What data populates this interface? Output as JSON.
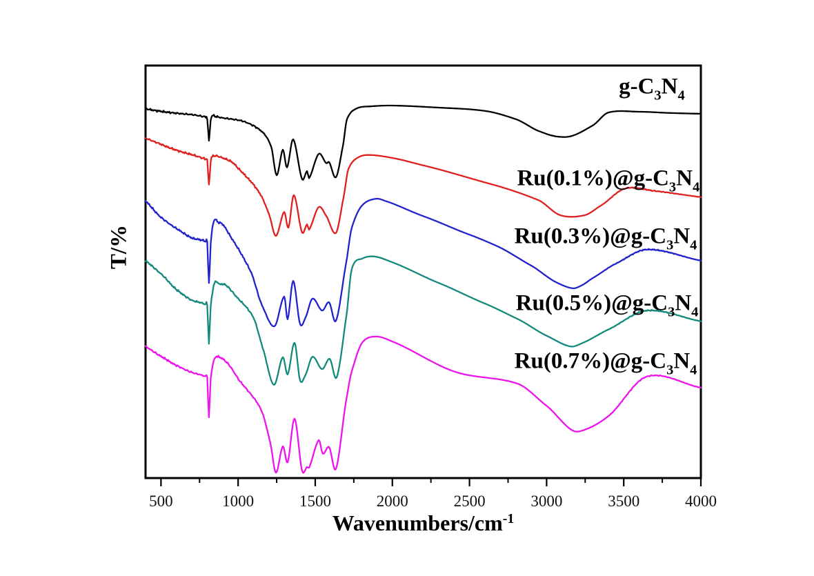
{
  "figure": {
    "background": "#ffffff",
    "frame_color": "#000000"
  },
  "chart_data": {
    "type": "line",
    "title": "",
    "xlabel": "Wavenumbers/cm⁻¹",
    "ylabel": "T/%",
    "grid": false,
    "legend_position": "inline labels placed above each curve near 3000-3700 cm⁻¹",
    "x_axis": {
      "min": 400,
      "max": 4000,
      "major_ticks": [
        500,
        1000,
        1500,
        2000,
        2500,
        3000,
        3500,
        4000
      ],
      "minor_ticks": [
        750,
        1250,
        1750,
        2250,
        2750,
        3250,
        3750
      ],
      "tick_direction": "outside"
    },
    "y_axis": {
      "min": 0,
      "max": 100,
      "ticks": [],
      "note": "transmittance with arbitrary vertical offsets; no numeric scale shown"
    },
    "series": [
      {
        "id": "g-c3n4",
        "label": "g-C₃N₄",
        "color": "#000000",
        "label_anchor": [
          3682,
          94.8
        ],
        "points": [
          [
            400,
            89.5
          ],
          [
            480,
            89.0
          ],
          [
            560,
            88.6
          ],
          [
            640,
            88.3
          ],
          [
            700,
            88.1
          ],
          [
            750,
            87.8
          ],
          [
            790,
            87.5
          ],
          [
            800,
            87.2
          ],
          [
            811,
            81.7
          ],
          [
            822,
            86.9
          ],
          [
            832,
            87.8
          ],
          [
            860,
            87.6
          ],
          [
            900,
            87.3
          ],
          [
            960,
            87.0
          ],
          [
            1040,
            86.4
          ],
          [
            1151,
            84.1
          ],
          [
            1214,
            80.4
          ],
          [
            1250,
            73.4
          ],
          [
            1290,
            79.6
          ],
          [
            1317,
            75.3
          ],
          [
            1357,
            82.1
          ],
          [
            1415,
            72.4
          ],
          [
            1447,
            74.4
          ],
          [
            1460,
            72.7
          ],
          [
            1523,
            78.6
          ],
          [
            1572,
            76.3
          ],
          [
            1590,
            76.6
          ],
          [
            1634,
            72.9
          ],
          [
            1679,
            80.4
          ],
          [
            1706,
            87.0
          ],
          [
            1769,
            89.6
          ],
          [
            1858,
            90.1
          ],
          [
            2000,
            90.3
          ],
          [
            2300,
            89.8
          ],
          [
            2600,
            89.0
          ],
          [
            2800,
            87.0
          ],
          [
            2950,
            84.1
          ],
          [
            3065,
            82.8
          ],
          [
            3160,
            82.9
          ],
          [
            3300,
            85.5
          ],
          [
            3400,
            88.6
          ],
          [
            3600,
            88.8
          ],
          [
            3800,
            88.5
          ],
          [
            4000,
            88.3
          ]
        ]
      },
      {
        "id": "ru01",
        "label": "Ru(0.1%)@g-C₃N₄",
        "color": "#e02020",
        "label_anchor": [
          3400,
          72.6
        ],
        "points": [
          [
            400,
            82.4
          ],
          [
            480,
            81.2
          ],
          [
            560,
            80.0
          ],
          [
            640,
            79.0
          ],
          [
            700,
            78.4
          ],
          [
            750,
            77.8
          ],
          [
            790,
            77.3
          ],
          [
            800,
            77.1
          ],
          [
            811,
            71.1
          ],
          [
            822,
            76.8
          ],
          [
            832,
            77.9
          ],
          [
            855,
            78.1
          ],
          [
            900,
            77.6
          ],
          [
            960,
            76.6
          ],
          [
            1013,
            74.6
          ],
          [
            1080,
            72.0
          ],
          [
            1147,
            68.6
          ],
          [
            1200,
            64.0
          ],
          [
            1245,
            58.7
          ],
          [
            1299,
            64.5
          ],
          [
            1326,
            60.7
          ],
          [
            1361,
            68.6
          ],
          [
            1415,
            59.5
          ],
          [
            1447,
            61.5
          ],
          [
            1460,
            60.2
          ],
          [
            1523,
            65.7
          ],
          [
            1572,
            63.5
          ],
          [
            1634,
            59.4
          ],
          [
            1683,
            67.9
          ],
          [
            1715,
            74.9
          ],
          [
            1782,
            77.8
          ],
          [
            1858,
            78.3
          ],
          [
            2000,
            77.6
          ],
          [
            2200,
            75.8
          ],
          [
            2645,
            71.2
          ],
          [
            2945,
            67.4
          ],
          [
            3090,
            63.7
          ],
          [
            3245,
            63.7
          ],
          [
            3350,
            66.0
          ],
          [
            3510,
            70.2
          ],
          [
            3700,
            69.6
          ],
          [
            4000,
            68.1
          ]
        ]
      },
      {
        "id": "ru03",
        "label": "Ru(0.3%)@g-C₃N₄",
        "color": "#2222cc",
        "label_anchor": [
          3383,
          58.5
        ],
        "points": [
          [
            400,
            67.2
          ],
          [
            500,
            63.2
          ],
          [
            600,
            60.5
          ],
          [
            700,
            58.2
          ],
          [
            750,
            57.8
          ],
          [
            790,
            57.4
          ],
          [
            800,
            57.1
          ],
          [
            811,
            47.3
          ],
          [
            822,
            56.6
          ],
          [
            843,
            62.4
          ],
          [
            870,
            62.0
          ],
          [
            900,
            61.5
          ],
          [
            960,
            58.0
          ],
          [
            1080,
            50.2
          ],
          [
            1156,
            41.8
          ],
          [
            1236,
            36.8
          ],
          [
            1299,
            44.0
          ],
          [
            1321,
            38.5
          ],
          [
            1357,
            47.8
          ],
          [
            1402,
            37.3
          ],
          [
            1438,
            39.0
          ],
          [
            1482,
            43.5
          ],
          [
            1545,
            40.6
          ],
          [
            1590,
            42.6
          ],
          [
            1634,
            38.1
          ],
          [
            1701,
            52.3
          ],
          [
            1737,
            60.7
          ],
          [
            1804,
            66.1
          ],
          [
            1893,
            67.7
          ],
          [
            1960,
            67.1
          ],
          [
            2200,
            63.5
          ],
          [
            2500,
            59.0
          ],
          [
            2680,
            56.2
          ],
          [
            2900,
            51.5
          ],
          [
            3060,
            47.5
          ],
          [
            3170,
            46.0
          ],
          [
            3227,
            46.7
          ],
          [
            3300,
            48.5
          ],
          [
            3450,
            52.0
          ],
          [
            3650,
            55.4
          ],
          [
            4000,
            52.7
          ]
        ]
      },
      {
        "id": "ru05",
        "label": "Ru(0.5%)@g-C₃N₄",
        "color": "#12897b",
        "label_anchor": [
          3392,
          42.3
        ],
        "points": [
          [
            400,
            52.7
          ],
          [
            500,
            49.5
          ],
          [
            600,
            45.7
          ],
          [
            700,
            43.1
          ],
          [
            750,
            42.6
          ],
          [
            790,
            42.1
          ],
          [
            800,
            41.9
          ],
          [
            811,
            32.8
          ],
          [
            822,
            41.5
          ],
          [
            847,
            47.3
          ],
          [
            880,
            47.0
          ],
          [
            919,
            46.8
          ],
          [
            1000,
            43.5
          ],
          [
            1098,
            39.0
          ],
          [
            1160,
            31.5
          ],
          [
            1232,
            22.6
          ],
          [
            1290,
            29.3
          ],
          [
            1321,
            25.1
          ],
          [
            1366,
            32.8
          ],
          [
            1402,
            23.6
          ],
          [
            1438,
            25.1
          ],
          [
            1482,
            29.4
          ],
          [
            1545,
            26.4
          ],
          [
            1594,
            28.9
          ],
          [
            1639,
            24.4
          ],
          [
            1701,
            39.0
          ],
          [
            1737,
            50.7
          ],
          [
            1804,
            53.2
          ],
          [
            1885,
            53.7
          ],
          [
            2000,
            52.3
          ],
          [
            2300,
            47.3
          ],
          [
            2600,
            42.3
          ],
          [
            2810,
            38.6
          ],
          [
            3000,
            34.5
          ],
          [
            3155,
            31.9
          ],
          [
            3236,
            32.8
          ],
          [
            3400,
            36.0
          ],
          [
            3650,
            40.6
          ],
          [
            4000,
            38.0
          ]
        ]
      },
      {
        "id": "ru07",
        "label": "Ru(0.7%)@g-C₃N₄",
        "color": "#ec13ec",
        "label_anchor": [
          3383,
          28.3
        ],
        "points": [
          [
            400,
            31.9
          ],
          [
            500,
            29.5
          ],
          [
            600,
            27.3
          ],
          [
            700,
            25.6
          ],
          [
            750,
            25.1
          ],
          [
            790,
            24.6
          ],
          [
            800,
            24.4
          ],
          [
            811,
            14.7
          ],
          [
            822,
            24.0
          ],
          [
            847,
            28.9
          ],
          [
            879,
            29.3
          ],
          [
            932,
            27.8
          ],
          [
            1020,
            23.1
          ],
          [
            1100,
            19.5
          ],
          [
            1156,
            15.9
          ],
          [
            1209,
            8.5
          ],
          [
            1245,
            1.3
          ],
          [
            1290,
            7.7
          ],
          [
            1321,
            3.8
          ],
          [
            1366,
            14.4
          ],
          [
            1415,
            1.7
          ],
          [
            1447,
            2.7
          ],
          [
            1460,
            2.5
          ],
          [
            1523,
            9.2
          ],
          [
            1549,
            5.9
          ],
          [
            1590,
            7.5
          ],
          [
            1634,
            2.2
          ],
          [
            1701,
            18.9
          ],
          [
            1737,
            25.9
          ],
          [
            1804,
            32.8
          ],
          [
            1893,
            34.3
          ],
          [
            2000,
            33.1
          ],
          [
            2420,
            25.6
          ],
          [
            2810,
            22.9
          ],
          [
            3000,
            17.5
          ],
          [
            3170,
            11.5
          ],
          [
            3260,
            11.9
          ],
          [
            3400,
            15.0
          ],
          [
            3650,
            24.6
          ],
          [
            4000,
            21.9
          ]
        ]
      }
    ]
  }
}
